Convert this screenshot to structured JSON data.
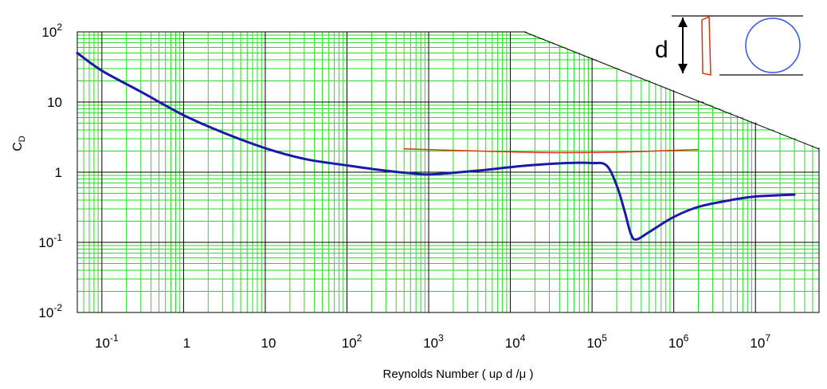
{
  "chart_data": {
    "type": "line",
    "title": "",
    "xlabel": "Reynolds Number  ( uρ d /μ )",
    "ylabel": "C",
    "ylabel_sub": "D",
    "x_scale": "log",
    "y_scale": "log",
    "xlim": [
      0.05,
      60000000
    ],
    "ylim": [
      0.01,
      100
    ],
    "grid": true,
    "x_ticks": [
      {
        "base": "10",
        "exp": "-1",
        "value": 0.1
      },
      {
        "base": "1",
        "exp": "",
        "value": 1
      },
      {
        "base": "10",
        "exp": "",
        "value": 10
      },
      {
        "base": "10",
        "exp": "2",
        "value": 100
      },
      {
        "base": "10",
        "exp": "3",
        "value": 1000
      },
      {
        "base": "10",
        "exp": "4",
        "value": 10000
      },
      {
        "base": "10",
        "exp": "5",
        "value": 100000
      },
      {
        "base": "10",
        "exp": "6",
        "value": 1000000
      },
      {
        "base": "10",
        "exp": "7",
        "value": 10000000
      }
    ],
    "y_ticks": [
      {
        "base": "10",
        "exp": "2",
        "value": 100
      },
      {
        "base": "10",
        "exp": "",
        "value": 10
      },
      {
        "base": "1",
        "exp": "",
        "value": 1
      },
      {
        "base": "10",
        "exp": "-1",
        "value": 0.1
      },
      {
        "base": "10",
        "exp": "-2",
        "value": 0.01
      }
    ],
    "series": [
      {
        "color": "#1a1aaa",
        "x": [
          0.05,
          0.1,
          0.3,
          1,
          3,
          10,
          30,
          100,
          300,
          700,
          1000,
          2000,
          5000,
          10000,
          20000,
          50000,
          100000,
          150000,
          200000,
          250000,
          300000,
          350000,
          500000,
          1000000,
          2000000,
          5000000,
          10000000,
          30000000
        ],
        "y": [
          50,
          28,
          14,
          6.5,
          3.7,
          2.2,
          1.55,
          1.25,
          1.05,
          0.95,
          0.93,
          0.98,
          1.08,
          1.18,
          1.27,
          1.35,
          1.35,
          1.25,
          0.65,
          0.28,
          0.13,
          0.11,
          0.14,
          0.23,
          0.32,
          0.4,
          0.45,
          0.48
        ]
      },
      {
        "color": "#dd3311",
        "x": [
          500,
          2000,
          10000,
          50000,
          300000,
          1000000,
          2000000
        ],
        "y": [
          2.15,
          2.05,
          1.95,
          1.9,
          1.95,
          2.05,
          2.1
        ]
      }
    ],
    "inset": {
      "label": "d",
      "flat_plate_color": "#dd3311",
      "sphere_color": "#3355ee"
    }
  }
}
